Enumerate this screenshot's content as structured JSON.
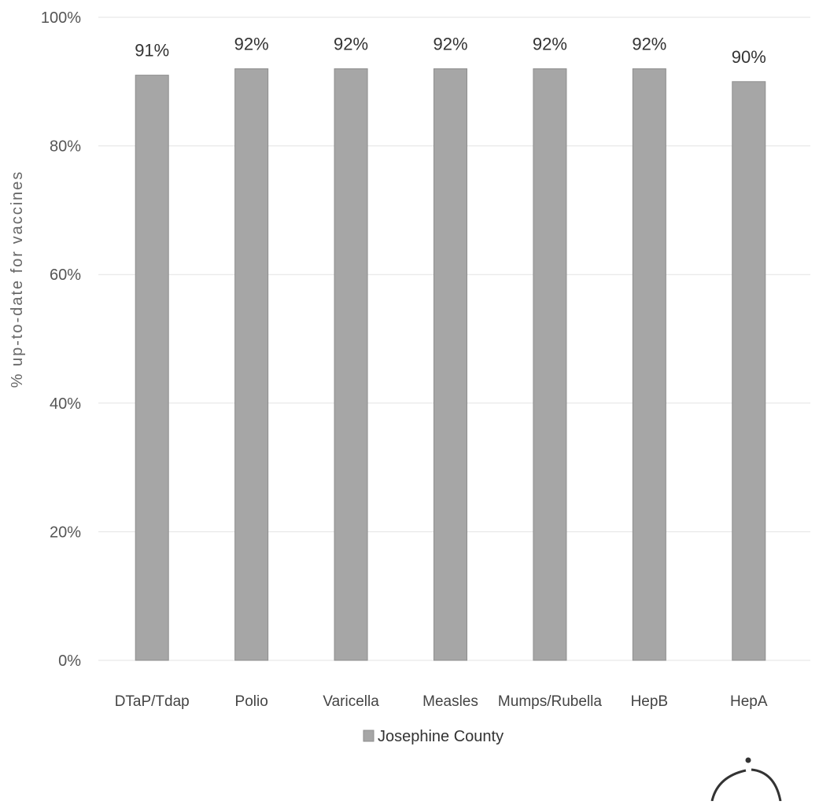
{
  "chart_data": {
    "type": "bar",
    "title": "",
    "xlabel": "",
    "ylabel": "% up-to-date for vaccines",
    "ylim": [
      0,
      100
    ],
    "yticks": [
      0,
      20,
      40,
      60,
      80,
      100
    ],
    "ytick_labels": [
      "0%",
      "20%",
      "40%",
      "60%",
      "80%",
      "100%"
    ],
    "grid": true,
    "legend": "bottom-center",
    "categories": [
      "DTaP/Tdap",
      "Polio",
      "Varicella",
      "Measles",
      "Mumps/Rubella",
      "HepB",
      "HepA"
    ],
    "series": [
      {
        "name": "Josephine County",
        "values": [
          91,
          92,
          92,
          92,
          92,
          92,
          90
        ],
        "data_labels": [
          "91%",
          "92%",
          "92%",
          "92%",
          "92%",
          "92%",
          "90%"
        ],
        "color": "#a6a6a6"
      }
    ]
  }
}
